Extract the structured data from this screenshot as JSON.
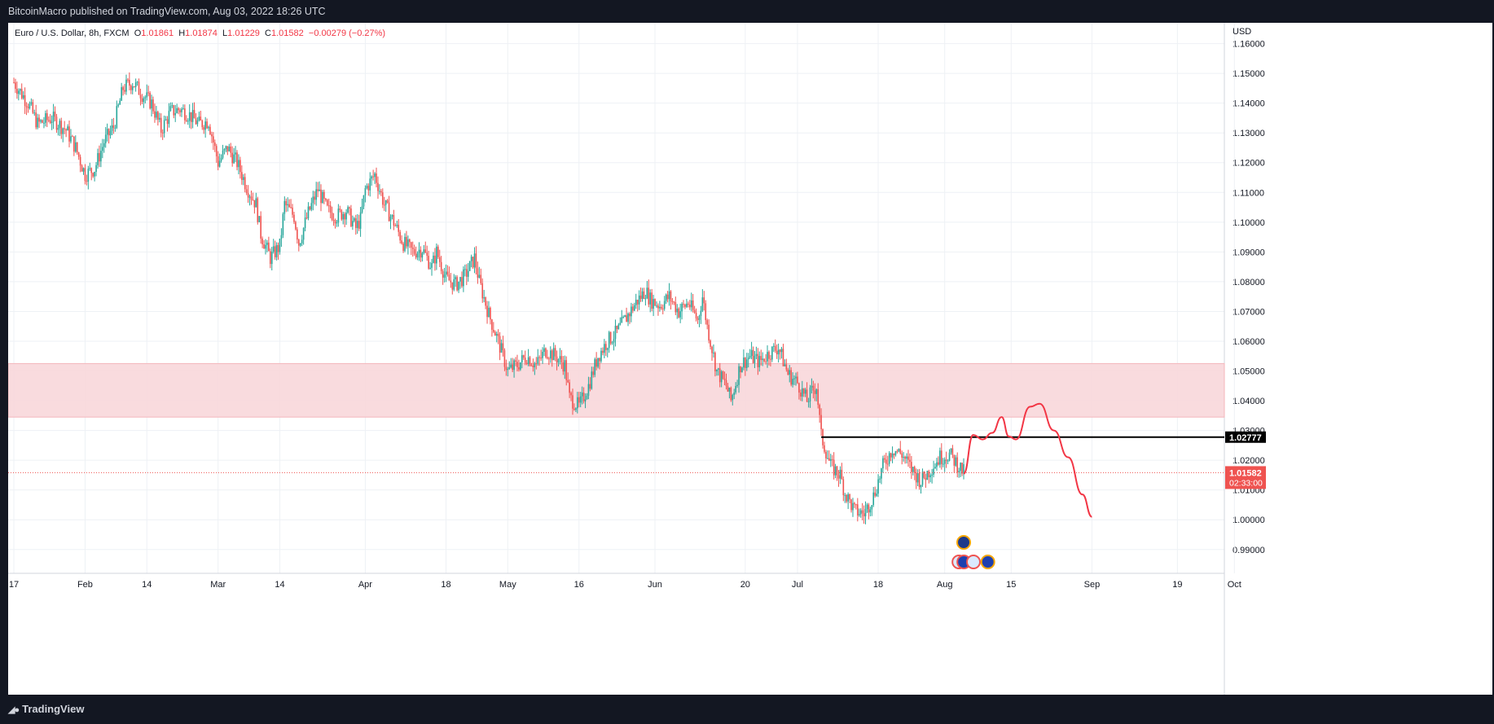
{
  "header": {
    "published": "BitcoinMacro published on TradingView.com, Aug 03, 2022 18:26 UTC"
  },
  "legend": {
    "symbol": "Euro / U.S. Dollar, 8h, FXCM",
    "open_label": "O",
    "open": "1.01861",
    "high_label": "H",
    "high": "1.01874",
    "low_label": "L",
    "low": "1.01229",
    "close_label": "C",
    "close": "1.01582",
    "change": "−0.00279 (−0.27%)"
  },
  "footer": {
    "brand": "TradingView"
  },
  "chart_data": {
    "type": "candlestick",
    "title": "Euro / U.S. Dollar, 8h, FXCM",
    "currency_label": "USD",
    "ylim": [
      0.982,
      1.167
    ],
    "y_ticks": [
      "1.16000",
      "1.15000",
      "1.14000",
      "1.13000",
      "1.12000",
      "1.11000",
      "1.10000",
      "1.09000",
      "1.08000",
      "1.07000",
      "1.06000",
      "1.05000",
      "1.04000",
      "1.03000",
      "1.02000",
      "1.01000",
      "1.00000",
      "0.99000"
    ],
    "x_ticks": [
      {
        "label": "17",
        "day": 0
      },
      {
        "label": "Feb",
        "day": 15
      },
      {
        "label": "14",
        "day": 28
      },
      {
        "label": "Mar",
        "day": 43
      },
      {
        "label": "14",
        "day": 56
      },
      {
        "label": "Apr",
        "day": 74
      },
      {
        "label": "18",
        "day": 91
      },
      {
        "label": "May",
        "day": 104
      },
      {
        "label": "16",
        "day": 119
      },
      {
        "label": "Jun",
        "day": 135
      },
      {
        "label": "20",
        "day": 154
      },
      {
        "label": "Jul",
        "day": 165
      },
      {
        "label": "18",
        "day": 182
      },
      {
        "label": "Aug",
        "day": 196
      },
      {
        "label": "15",
        "day": 210
      },
      {
        "label": "Sep",
        "day": 227
      },
      {
        "label": "19",
        "day": 245
      },
      {
        "label": "Oct",
        "day": 257
      }
    ],
    "price_path": [
      [
        0,
        1.147
      ],
      [
        3,
        1.14
      ],
      [
        5,
        1.133
      ],
      [
        8,
        1.135
      ],
      [
        11,
        1.131
      ],
      [
        13,
        1.125
      ],
      [
        15,
        1.116
      ],
      [
        17,
        1.118
      ],
      [
        19,
        1.127
      ],
      [
        21,
        1.132
      ],
      [
        23,
        1.145
      ],
      [
        25,
        1.147
      ],
      [
        27,
        1.143
      ],
      [
        29,
        1.14
      ],
      [
        31,
        1.131
      ],
      [
        33,
        1.137
      ],
      [
        35,
        1.138
      ],
      [
        37,
        1.136
      ],
      [
        39,
        1.133
      ],
      [
        41,
        1.134
      ],
      [
        43,
        1.12
      ],
      [
        45,
        1.125
      ],
      [
        47,
        1.12
      ],
      [
        49,
        1.112
      ],
      [
        51,
        1.106
      ],
      [
        52,
        1.096
      ],
      [
        54,
        1.088
      ],
      [
        56,
        1.092
      ],
      [
        57,
        1.106
      ],
      [
        59,
        1.102
      ],
      [
        60,
        1.093
      ],
      [
        62,
        1.103
      ],
      [
        64,
        1.111
      ],
      [
        66,
        1.104
      ],
      [
        68,
        1.102
      ],
      [
        70,
        1.104
      ],
      [
        72,
        1.098
      ],
      [
        73,
        1.101
      ],
      [
        74,
        1.111
      ],
      [
        76,
        1.116
      ],
      [
        78,
        1.106
      ],
      [
        80,
        1.1
      ],
      [
        82,
        1.093
      ],
      [
        84,
        1.09
      ],
      [
        86,
        1.091
      ],
      [
        88,
        1.085
      ],
      [
        89,
        1.09
      ],
      [
        91,
        1.081
      ],
      [
        93,
        1.079
      ],
      [
        95,
        1.082
      ],
      [
        97,
        1.088
      ],
      [
        98,
        1.08
      ],
      [
        100,
        1.069
      ],
      [
        102,
        1.06
      ],
      [
        104,
        1.05
      ],
      [
        106,
        1.052
      ],
      [
        108,
        1.055
      ],
      [
        110,
        1.052
      ],
      [
        112,
        1.057
      ],
      [
        114,
        1.055
      ],
      [
        116,
        1.052
      ],
      [
        117,
        1.041
      ],
      [
        119,
        1.038
      ],
      [
        121,
        1.045
      ],
      [
        123,
        1.055
      ],
      [
        125,
        1.06
      ],
      [
        127,
        1.063
      ],
      [
        129,
        1.068
      ],
      [
        131,
        1.073
      ],
      [
        133,
        1.077
      ],
      [
        134,
        1.074
      ],
      [
        136,
        1.072
      ],
      [
        138,
        1.075
      ],
      [
        140,
        1.07
      ],
      [
        142,
        1.073
      ],
      [
        144,
        1.067
      ],
      [
        145,
        1.075
      ],
      [
        146,
        1.065
      ],
      [
        148,
        1.05
      ],
      [
        150,
        1.045
      ],
      [
        151,
        1.04
      ],
      [
        153,
        1.052
      ],
      [
        155,
        1.055
      ],
      [
        157,
        1.053
      ],
      [
        159,
        1.056
      ],
      [
        161,
        1.058
      ],
      [
        163,
        1.049
      ],
      [
        165,
        1.046
      ],
      [
        167,
        1.04
      ],
      [
        168,
        1.043
      ],
      [
        169,
        1.045
      ],
      [
        170,
        1.028
      ],
      [
        172,
        1.018
      ],
      [
        174,
        1.015
      ],
      [
        175,
        1.009
      ],
      [
        177,
        1.003
      ],
      [
        179,
        1.002
      ],
      [
        181,
        1.008
      ],
      [
        183,
        1.018
      ],
      [
        185,
        1.024
      ],
      [
        187,
        1.022
      ],
      [
        189,
        1.017
      ],
      [
        191,
        1.013
      ],
      [
        193,
        1.017
      ],
      [
        195,
        1.021
      ],
      [
        197,
        1.022
      ],
      [
        199,
        1.018
      ],
      [
        200,
        1.016
      ]
    ],
    "demand_zone": {
      "from": 1.0345,
      "to": 1.0525,
      "color": "#f8d7da"
    },
    "resistance_level": {
      "value": 1.02777,
      "from_day": 170,
      "label": "1.02777"
    },
    "last_price": {
      "value": 1.01582,
      "label": "1.01582",
      "countdown": "02:33:00"
    },
    "projection": {
      "color": "#f23645",
      "points": [
        [
          200,
          1.0155
        ],
        [
          202,
          1.0285
        ],
        [
          204,
          1.027
        ],
        [
          206,
          1.0292
        ],
        [
          208,
          1.0345
        ],
        [
          209.5,
          1.028
        ],
        [
          211,
          1.027
        ],
        [
          214,
          1.038
        ],
        [
          216,
          1.039
        ],
        [
          219,
          1.03
        ],
        [
          222,
          1.021
        ],
        [
          225,
          1.0085
        ],
        [
          227,
          1.001
        ]
      ]
    },
    "events": [
      {
        "day": 199
      },
      {
        "day": 199
      },
      {
        "day": 200
      },
      {
        "day": 202
      }
    ],
    "colors": {
      "up": "#26a69a",
      "down": "#ef5350",
      "grid": "#eef1f5",
      "axis": "#787b86",
      "level": "#000000"
    }
  }
}
